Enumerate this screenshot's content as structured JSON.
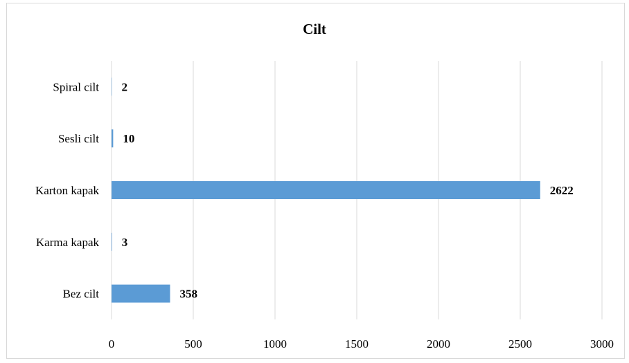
{
  "colors": {
    "bar": "#5b9bd5",
    "grid": "#d9d9d9",
    "text": "#000000"
  },
  "chart_data": {
    "type": "bar",
    "orientation": "horizontal",
    "title": "Cilt",
    "xlabel": "",
    "ylabel": "",
    "categories": [
      "Spiral cilt",
      "Sesli cilt",
      "Karton kapak",
      "Karma kapak",
      "Bez cilt"
    ],
    "values": [
      2,
      10,
      2622,
      3,
      358
    ],
    "xlim": [
      0,
      3000
    ],
    "xticks": [
      0,
      500,
      1000,
      1500,
      2000,
      2500,
      3000
    ],
    "grid": true,
    "data_labels": true,
    "legend": "none"
  }
}
